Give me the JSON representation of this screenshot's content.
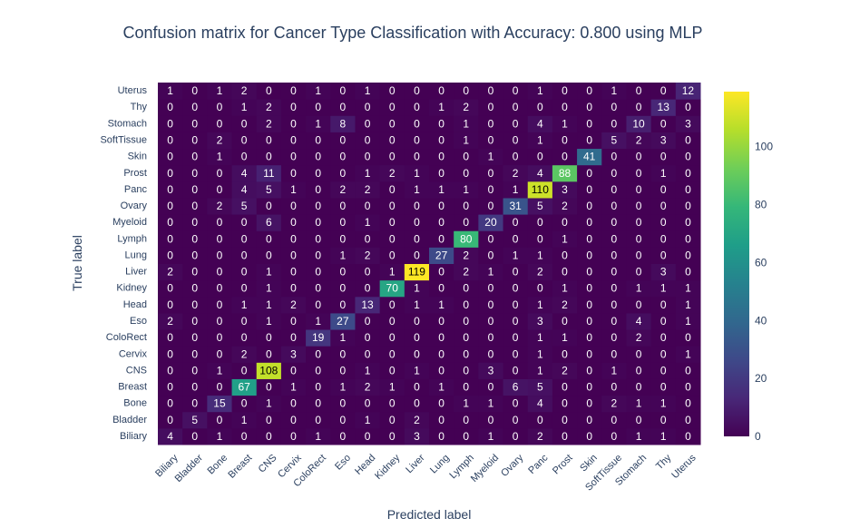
{
  "chart_data": {
    "type": "heatmap",
    "title": "Confusion matrix for Cancer Type Classification with Accuracy: 0.800 using MLP",
    "xlabel": "Predicted label",
    "ylabel": "True label",
    "x": [
      "Biliary",
      "Bladder",
      "Bone",
      "Breast",
      "CNS",
      "Cervix",
      "ColoRect",
      "Eso",
      "Head",
      "Kidney",
      "Liver",
      "Lung",
      "Lymph",
      "Myeloid",
      "Ovary",
      "Panc",
      "Prost",
      "Skin",
      "SoftTissue",
      "Stomach",
      "Thy",
      "Uterus"
    ],
    "y": [
      "Biliary",
      "Bladder",
      "Bone",
      "Breast",
      "CNS",
      "Cervix",
      "ColoRect",
      "Eso",
      "Head",
      "Kidney",
      "Liver",
      "Lung",
      "Lymph",
      "Myeloid",
      "Ovary",
      "Panc",
      "Prost",
      "Skin",
      "SoftTissue",
      "Stomach",
      "Thy",
      "Uterus"
    ],
    "z": [
      [
        4,
        0,
        1,
        0,
        0,
        0,
        1,
        0,
        0,
        0,
        3,
        0,
        0,
        1,
        0,
        2,
        0,
        0,
        0,
        1,
        1,
        0
      ],
      [
        0,
        5,
        0,
        1,
        0,
        0,
        0,
        0,
        1,
        0,
        2,
        0,
        0,
        0,
        0,
        0,
        0,
        0,
        0,
        0,
        0,
        0
      ],
      [
        0,
        0,
        15,
        0,
        1,
        0,
        0,
        0,
        0,
        0,
        0,
        0,
        1,
        1,
        0,
        4,
        0,
        0,
        2,
        1,
        1,
        0
      ],
      [
        0,
        0,
        0,
        67,
        0,
        1,
        0,
        1,
        2,
        1,
        0,
        1,
        0,
        0,
        6,
        5,
        0,
        0,
        0,
        0,
        0,
        0
      ],
      [
        0,
        0,
        1,
        0,
        108,
        0,
        0,
        0,
        1,
        0,
        1,
        0,
        0,
        3,
        0,
        1,
        2,
        0,
        1,
        0,
        0,
        0
      ],
      [
        0,
        0,
        0,
        2,
        0,
        3,
        0,
        0,
        0,
        0,
        0,
        0,
        0,
        0,
        0,
        1,
        0,
        0,
        0,
        0,
        0,
        1
      ],
      [
        0,
        0,
        0,
        0,
        0,
        0,
        19,
        1,
        0,
        0,
        0,
        0,
        0,
        0,
        0,
        1,
        1,
        0,
        0,
        2,
        0,
        0
      ],
      [
        2,
        0,
        0,
        0,
        1,
        0,
        1,
        27,
        0,
        0,
        0,
        0,
        0,
        0,
        0,
        3,
        0,
        0,
        0,
        4,
        0,
        1
      ],
      [
        0,
        0,
        0,
        1,
        1,
        2,
        0,
        0,
        13,
        0,
        1,
        1,
        0,
        0,
        0,
        1,
        2,
        0,
        0,
        0,
        0,
        1
      ],
      [
        0,
        0,
        0,
        0,
        1,
        0,
        0,
        0,
        0,
        70,
        1,
        0,
        0,
        0,
        0,
        0,
        1,
        0,
        0,
        1,
        1,
        1
      ],
      [
        2,
        0,
        0,
        0,
        1,
        0,
        0,
        0,
        0,
        1,
        119,
        0,
        2,
        1,
        0,
        2,
        0,
        0,
        0,
        0,
        3,
        0
      ],
      [
        0,
        0,
        0,
        0,
        0,
        0,
        0,
        1,
        2,
        0,
        0,
        27,
        2,
        0,
        1,
        1,
        0,
        0,
        0,
        0,
        0,
        0
      ],
      [
        0,
        0,
        0,
        0,
        0,
        0,
        0,
        0,
        0,
        0,
        0,
        0,
        80,
        0,
        0,
        0,
        1,
        0,
        0,
        0,
        0,
        0
      ],
      [
        0,
        0,
        0,
        0,
        6,
        0,
        0,
        0,
        1,
        0,
        0,
        0,
        0,
        20,
        0,
        0,
        0,
        0,
        0,
        0,
        0,
        0
      ],
      [
        0,
        0,
        2,
        5,
        0,
        0,
        0,
        0,
        0,
        0,
        0,
        0,
        0,
        0,
        31,
        5,
        2,
        0,
        0,
        0,
        0,
        0
      ],
      [
        0,
        0,
        0,
        4,
        5,
        1,
        0,
        2,
        2,
        0,
        1,
        1,
        1,
        0,
        1,
        110,
        3,
        0,
        0,
        0,
        0,
        0
      ],
      [
        0,
        0,
        0,
        4,
        11,
        0,
        0,
        0,
        1,
        2,
        1,
        0,
        0,
        0,
        2,
        4,
        88,
        0,
        0,
        0,
        1,
        0
      ],
      [
        0,
        0,
        1,
        0,
        0,
        0,
        0,
        0,
        0,
        0,
        0,
        0,
        0,
        1,
        0,
        0,
        0,
        41,
        0,
        0,
        0,
        0
      ],
      [
        0,
        0,
        2,
        0,
        0,
        0,
        0,
        0,
        0,
        0,
        0,
        0,
        1,
        0,
        0,
        1,
        0,
        0,
        5,
        2,
        3,
        0
      ],
      [
        0,
        0,
        0,
        0,
        2,
        0,
        1,
        8,
        0,
        0,
        0,
        0,
        1,
        0,
        0,
        4,
        1,
        0,
        0,
        10,
        0,
        3
      ],
      [
        0,
        0,
        0,
        1,
        2,
        0,
        0,
        0,
        0,
        0,
        0,
        1,
        2,
        0,
        0,
        0,
        0,
        0,
        0,
        0,
        13,
        0
      ],
      [
        1,
        0,
        1,
        2,
        0,
        0,
        1,
        0,
        1,
        0,
        0,
        0,
        0,
        0,
        0,
        1,
        0,
        0,
        1,
        0,
        0,
        12
      ]
    ],
    "zmin": 0,
    "zmax": 119,
    "colorscale": "viridis",
    "colorbar_ticks": [
      0,
      20,
      40,
      60,
      80,
      100
    ]
  }
}
